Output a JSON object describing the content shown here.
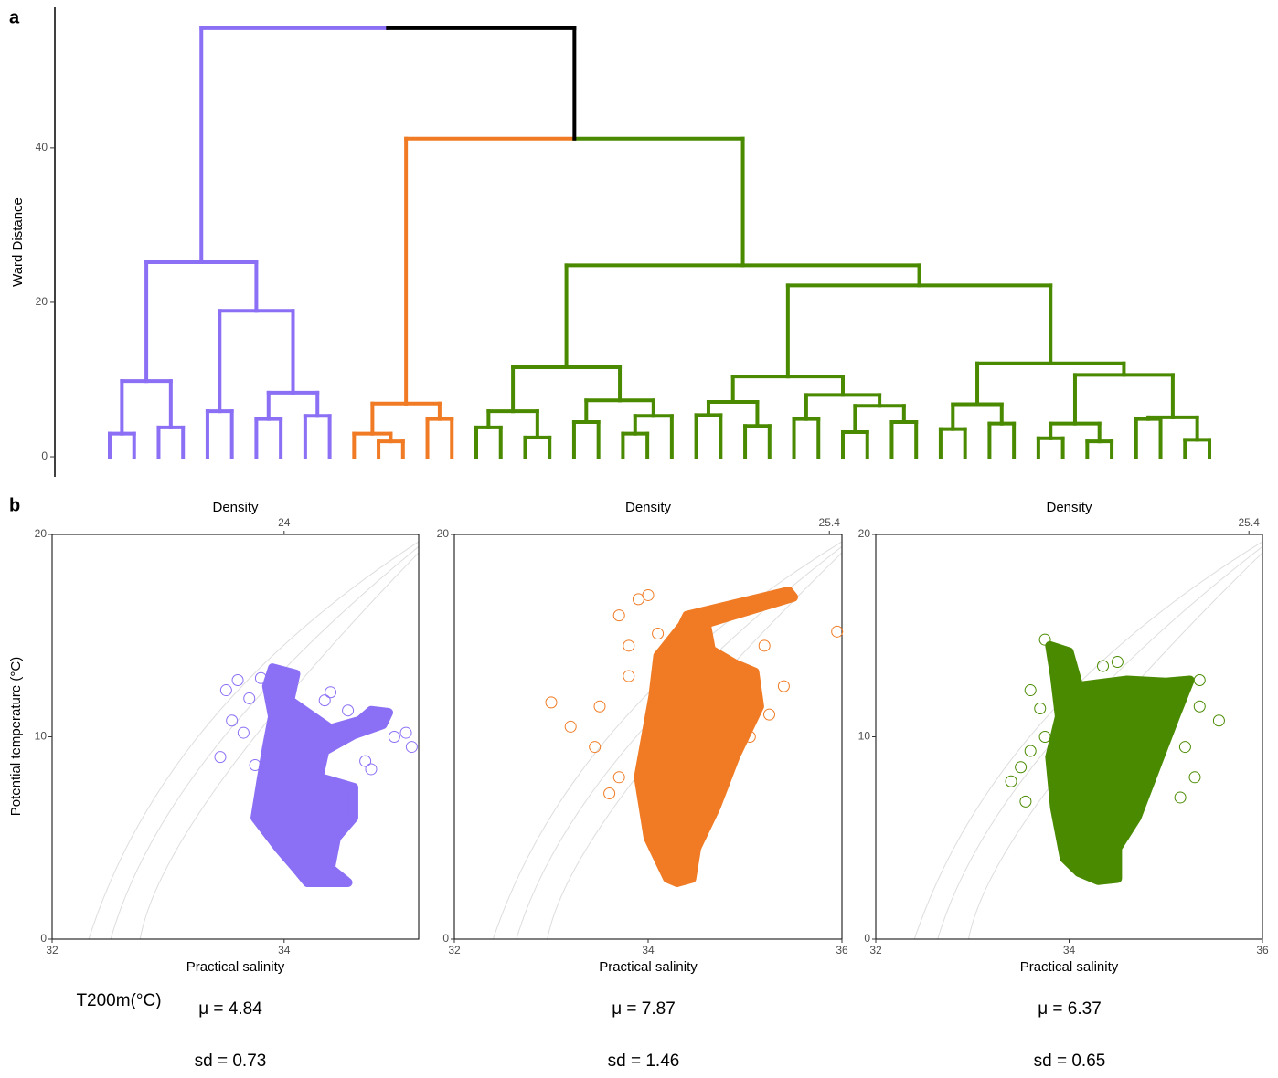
{
  "panel_labels": [
    "a",
    "b"
  ],
  "chart_data": [
    {
      "type": "dendrogram",
      "y_label": "Ward Distance",
      "ylim": [
        -2.6,
        58.2
      ],
      "yticks": [
        0,
        20,
        40
      ],
      "tree": {
        "height": 55.5,
        "color": "#000000",
        "children": [
          {
            "height": 25.2,
            "color": "#8b6ff5",
            "children": [
              {
                "height": 9.8,
                "children": [
                  {
                    "height": 3.0,
                    "children": [
                      0,
                      0
                    ]
                  },
                  {
                    "height": 3.8,
                    "children": [
                      0,
                      0
                    ]
                  }
                ]
              },
              {
                "height": 18.9,
                "children": [
                  {
                    "height": 5.9,
                    "children": [
                      0,
                      0
                    ]
                  },
                  {
                    "height": 8.3,
                    "children": [
                      {
                        "height": 4.9,
                        "children": [
                          0,
                          0
                        ]
                      },
                      {
                        "height": 5.3,
                        "children": [
                          0,
                          0
                        ]
                      }
                    ]
                  }
                ]
              }
            ]
          },
          {
            "height": 41.2,
            "color": "#000000",
            "children": [
              {
                "height": 6.9,
                "color": "#f07b24",
                "children": [
                  {
                    "height": 3.0,
                    "children": [
                      0,
                      {
                        "height": 2.0,
                        "children": [
                          0,
                          0
                        ]
                      }
                    ]
                  },
                  {
                    "height": 4.9,
                    "children": [
                      0,
                      0
                    ]
                  }
                ]
              },
              {
                "height": 24.8,
                "color": "#4a8a00",
                "children": [
                  {
                    "height": 11.6,
                    "children": [
                      {
                        "height": 5.9,
                        "children": [
                          {
                            "height": 3.8,
                            "children": [
                              0,
                              0
                            ]
                          },
                          {
                            "height": 2.5,
                            "children": [
                              0,
                              0
                            ]
                          }
                        ]
                      },
                      {
                        "height": 7.3,
                        "children": [
                          {
                            "height": 4.5,
                            "children": [
                              0,
                              0
                            ]
                          },
                          {
                            "height": 5.3,
                            "children": [
                              {
                                "height": 3.0,
                                "children": [
                                  0,
                                  0
                                ]
                              },
                              0
                            ]
                          }
                        ]
                      }
                    ]
                  },
                  {
                    "height": 22.2,
                    "children": [
                      {
                        "height": 10.4,
                        "children": [
                          {
                            "height": 7.1,
                            "children": [
                              {
                                "height": 5.4,
                                "children": [
                                  0,
                                  0
                                ]
                              },
                              {
                                "height": 4.0,
                                "children": [
                                  0,
                                  0
                                ]
                              }
                            ]
                          },
                          {
                            "height": 8.0,
                            "children": [
                              {
                                "height": 4.9,
                                "children": [
                                  0,
                                  0
                                ]
                              },
                              {
                                "height": 6.6,
                                "children": [
                                  {
                                    "height": 3.2,
                                    "children": [
                                      0,
                                      0
                                    ]
                                  },
                                  {
                                    "height": 4.5,
                                    "children": [
                                      0,
                                      0
                                    ]
                                  }
                                ]
                              }
                            ]
                          }
                        ]
                      },
                      {
                        "height": 12.1,
                        "children": [
                          {
                            "height": 6.8,
                            "children": [
                              {
                                "height": 3.6,
                                "children": [
                                  0,
                                  0
                                ]
                              },
                              {
                                "height": 4.3,
                                "children": [
                                  0,
                                  0
                                ]
                              }
                            ]
                          },
                          {
                            "height": 10.6,
                            "children": [
                              {
                                "height": 4.3,
                                "children": [
                                  {
                                    "height": 2.4,
                                    "children": [
                                      0,
                                      0
                                    ]
                                  },
                                  {
                                    "height": 2.0,
                                    "children": [
                                      0,
                                      0
                                    ]
                                  }
                                ]
                              },
                              {
                                "height": 5.1,
                                "children": [
                                  {
                                    "height": 4.9,
                                    "children": [
                                      0,
                                      0
                                    ]
                                  },
                                  {
                                    "height": 2.2,
                                    "children": [
                                      0,
                                      0
                                    ]
                                  }
                                ]
                              }
                            ]
                          }
                        ]
                      }
                    ]
                  }
                ]
              }
            ]
          }
        ]
      }
    },
    {
      "type": "scatter",
      "title": "Density",
      "x_label": "Practical salinity",
      "y_label": "Potential temperature (°C)",
      "color": "#8b6ff5",
      "xlim": [
        32,
        35.16
      ],
      "xticks": [
        32,
        34
      ],
      "ylim": [
        0,
        20
      ],
      "yticks": [
        0,
        10,
        20
      ],
      "top_ticks": [
        {
          "value": 34,
          "label": "24"
        }
      ],
      "core": {
        "x": [
          33.8,
          33.85,
          33.9,
          33.85,
          33.9,
          34.1,
          34.05,
          34.2,
          34.4,
          34.65,
          34.75,
          34.9,
          34.85,
          34.6,
          34.35,
          34.3,
          34.6,
          34.6,
          34.45,
          34.4,
          34.55,
          34.2,
          34.1,
          33.95,
          33.75
        ],
        "y": [
          7.8,
          9.5,
          11,
          12.5,
          13.4,
          13.1,
          11.8,
          11.2,
          10.4,
          10.8,
          11.3,
          11.2,
          10.6,
          10.1,
          9.3,
          8,
          7.5,
          6,
          5,
          3.5,
          2.8,
          2.8,
          3.5,
          4.5,
          6
        ]
      },
      "x": [
        33.5,
        33.6,
        33.55,
        33.45,
        33.7,
        35.1,
        34.95,
        35.05,
        33.75,
        34.4,
        34.35,
        33.8,
        34.7,
        34.75,
        33.65,
        34.55
      ],
      "y": [
        12.3,
        12.8,
        10.8,
        9.0,
        11.9,
        9.5,
        10,
        10.2,
        8.6,
        12.2,
        11.8,
        12.9,
        8.8,
        8.4,
        10.2,
        11.3
      ]
    },
    {
      "type": "scatter",
      "title": "Density",
      "x_label": "Practical salinity",
      "color": "#f07b24",
      "xlim": [
        32,
        36
      ],
      "xticks": [
        32,
        34,
        36
      ],
      "ylim": [
        0,
        20
      ],
      "yticks": [
        0,
        20
      ],
      "top_ticks": [
        {
          "value": 35.87,
          "label": "25.4"
        }
      ],
      "core": {
        "x": [
          34.2,
          34.0,
          33.9,
          34.05,
          34.1,
          34.35,
          34.4,
          35.45,
          35.5,
          34.6,
          34.65,
          34.9,
          35.1,
          35.15,
          34.9,
          34.7,
          34.5,
          34.45,
          34.3
        ],
        "y": [
          3,
          5,
          8,
          12,
          14,
          15.5,
          16,
          17.2,
          16.9,
          15.6,
          14.3,
          13.6,
          13.2,
          11.5,
          9,
          6.5,
          4.5,
          3,
          2.8
        ]
      },
      "x": [
        33.7,
        33.9,
        34.1,
        33.8,
        33.0,
        33.5,
        33.2,
        33.7,
        33.45,
        35.05,
        35.25,
        35.95,
        35.2,
        33.8,
        34.0,
        35.4,
        33.6
      ],
      "y": [
        16,
        16.8,
        15.1,
        14.5,
        11.7,
        11.5,
        10.5,
        8,
        9.5,
        10,
        11.1,
        15.2,
        14.5,
        13,
        17,
        12.5,
        7.2
      ]
    },
    {
      "type": "scatter",
      "title": "Density",
      "x_label": "Practical salinity",
      "color": "#4a8a00",
      "xlim": [
        32,
        36
      ],
      "xticks": [
        32,
        34,
        36
      ],
      "ylim": [
        0,
        20
      ],
      "yticks": [
        0,
        10,
        20
      ],
      "top_ticks": [
        {
          "value": 35.86,
          "label": "25.4"
        }
      ],
      "core": {
        "x": [
          33.95,
          33.85,
          33.8,
          33.9,
          33.85,
          33.8,
          34.0,
          34.1,
          34.6,
          35.0,
          35.25,
          35.1,
          34.9,
          34.7,
          34.5,
          34.5,
          34.3,
          34.1
        ],
        "y": [
          4,
          6.5,
          9,
          11,
          13,
          14.5,
          14.2,
          12.5,
          12.8,
          12.7,
          12.8,
          11,
          8.5,
          6,
          4.5,
          3,
          2.9,
          3.3
        ]
      },
      "x": [
        33.4,
        33.5,
        33.6,
        33.7,
        33.75,
        35.55,
        35.35,
        35.3,
        35.15,
        33.55,
        34.5,
        34.35,
        35.35,
        33.75,
        33.6,
        35.2
      ],
      "y": [
        7.8,
        8.5,
        9.3,
        11.4,
        10,
        10.8,
        11.5,
        8,
        7,
        6.8,
        13.7,
        13.5,
        12.8,
        14.8,
        12.3,
        9.5
      ]
    }
  ],
  "stats": {
    "label": "T200m(°C)",
    "groups": [
      {
        "mean": "μ = 4.84",
        "sd": "sd = 0.73"
      },
      {
        "mean": "μ = 7.87",
        "sd": "sd = 1.46"
      },
      {
        "mean": "μ = 6.37",
        "sd": "sd = 0.65"
      }
    ]
  }
}
